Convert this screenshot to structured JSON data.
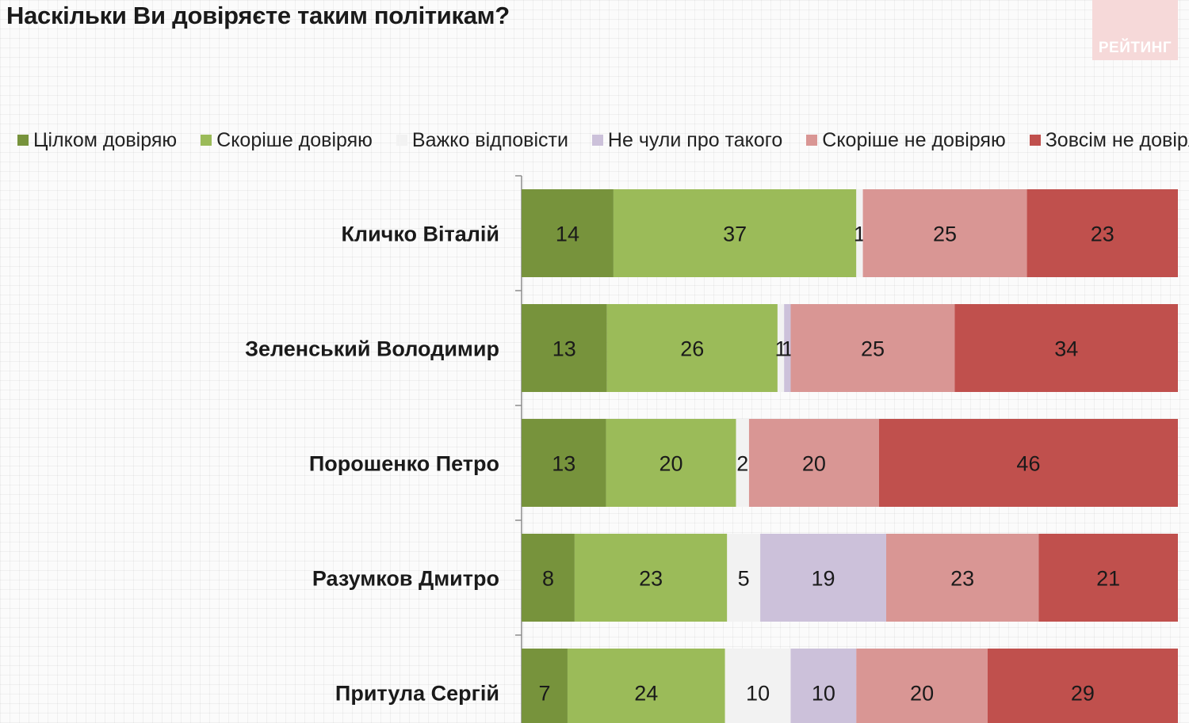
{
  "title": "Наскільки Ви довіряєте таким політикам?",
  "logo_text": "РЕЙТИНГ",
  "chart_data": {
    "type": "bar",
    "orientation": "horizontal",
    "stacked": true,
    "categories": [
      "Кличко Віталій",
      "Зеленський Володимир",
      "Порошенко Петро",
      "Разумков Дмитро",
      "Притула Сергій"
    ],
    "series": [
      {
        "name": "Цілком довіряю",
        "color": "#77933c",
        "values": [
          14,
          13,
          13,
          8,
          7
        ]
      },
      {
        "name": "Скоріше довіряю",
        "color": "#9bbb59",
        "values": [
          37,
          26,
          20,
          23,
          24
        ]
      },
      {
        "name": "Важко відповісти",
        "color": "#f2f2f2",
        "values": [
          1,
          1,
          2,
          5,
          10
        ]
      },
      {
        "name": "Не чули про такого",
        "color": "#ccc1da",
        "values": [
          0,
          1,
          0,
          19,
          10
        ]
      },
      {
        "name": "Скоріше не довіряю",
        "color": "#d99694",
        "values": [
          25,
          25,
          20,
          23,
          20
        ]
      },
      {
        "name": "Зовсім не довіряю",
        "color": "#c0504d",
        "values": [
          23,
          34,
          46,
          21,
          29
        ]
      }
    ],
    "data_labels": true,
    "legend_position": "top",
    "grid": false
  }
}
